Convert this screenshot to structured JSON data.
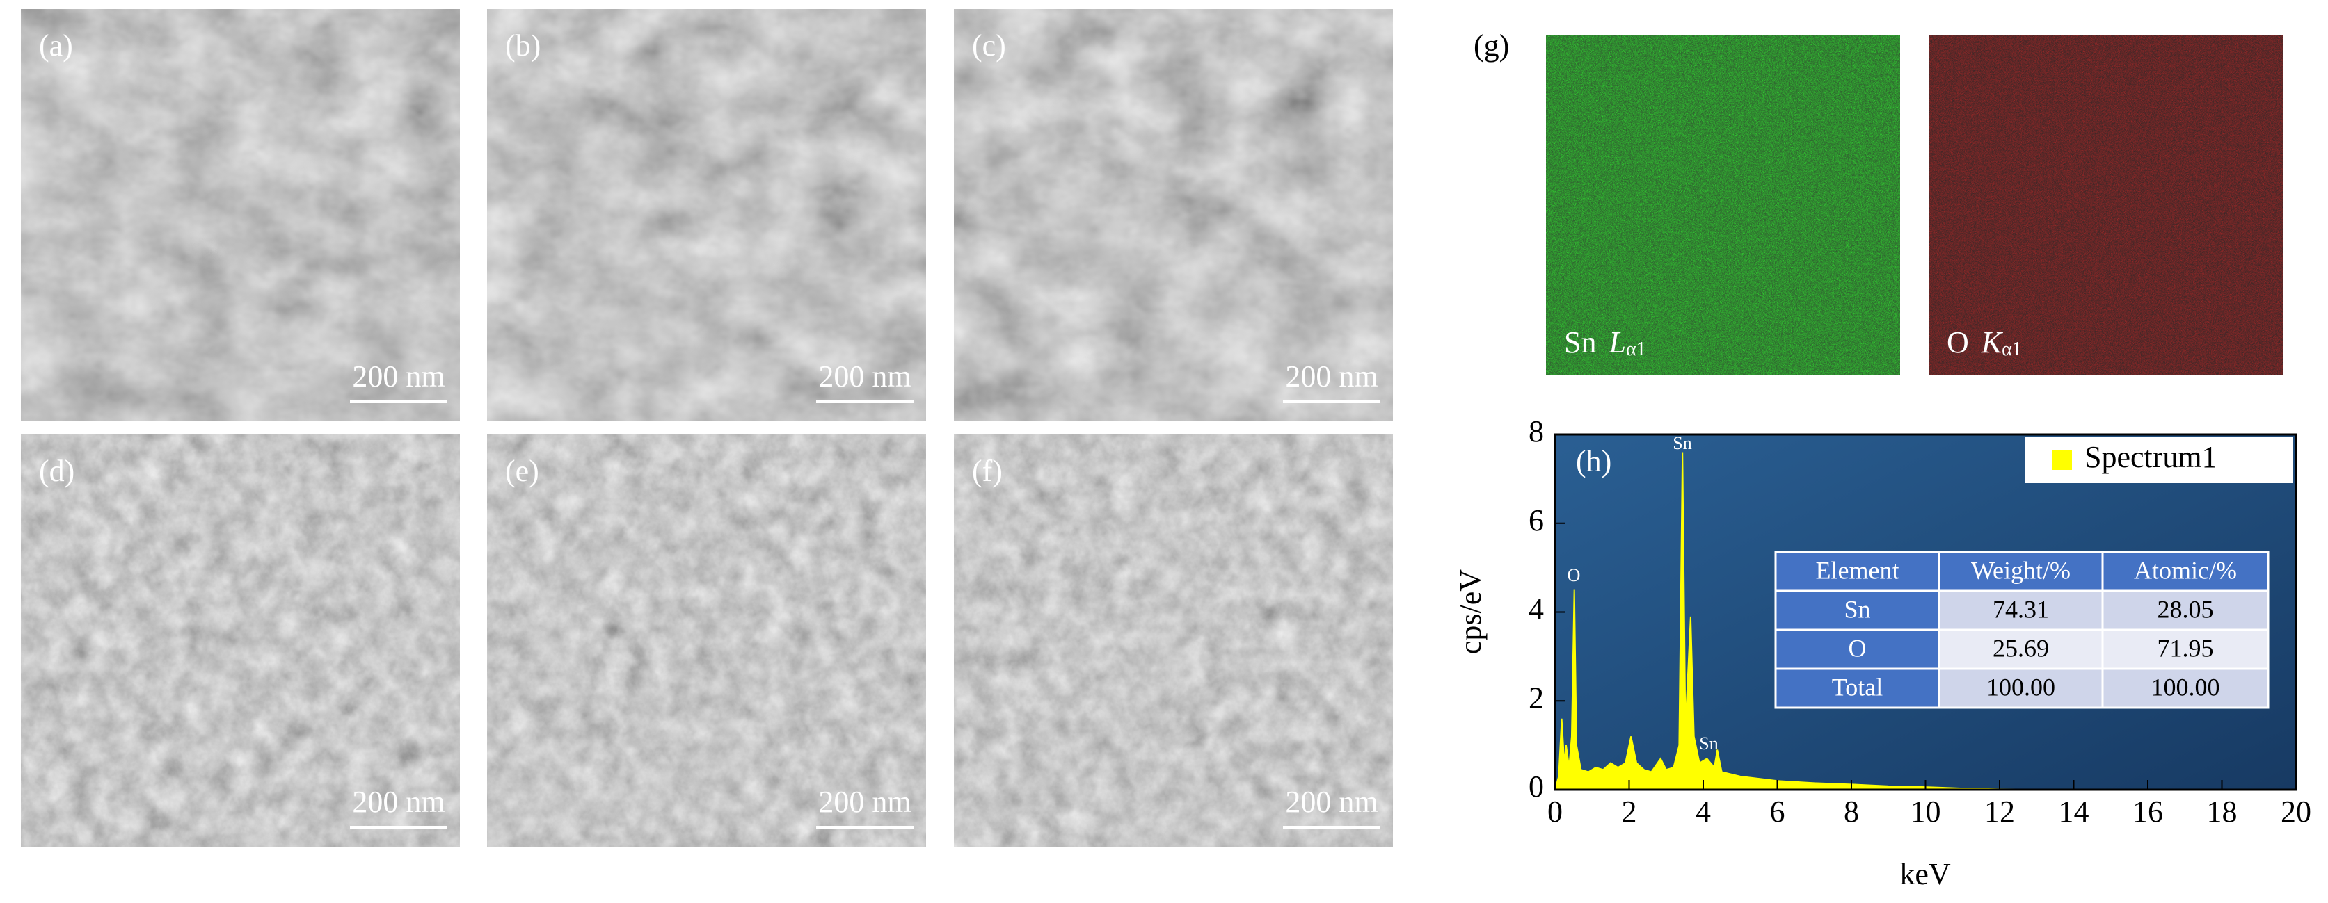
{
  "panels": [
    {
      "label": "(a)",
      "scale_bar": "200 nm"
    },
    {
      "label": "(b)",
      "scale_bar": "200 nm"
    },
    {
      "label": "(c)",
      "scale_bar": "200 nm"
    },
    {
      "label": "(d)",
      "scale_bar": "200 nm"
    },
    {
      "label": "(e)",
      "scale_bar": "200 nm"
    },
    {
      "label": "(f)",
      "scale_bar": "200 nm"
    }
  ],
  "maps": {
    "label": "(g)",
    "items": [
      {
        "element": "Sn",
        "line": "L",
        "sub": "α1"
      },
      {
        "element": "O",
        "line": "K",
        "sub": "α1"
      }
    ]
  },
  "chart_data": {
    "type": "area",
    "panel_label": "(h)",
    "x_label": "keV",
    "y_label": "cps/eV",
    "annotations": [
      "Sn",
      "O",
      "Sn"
    ],
    "x": [
      0,
      0.1,
      0.18,
      0.25,
      0.3,
      0.38,
      0.45,
      0.52,
      0.58,
      0.7,
      0.9,
      1.1,
      1.3,
      1.5,
      1.7,
      1.9,
      2.05,
      2.2,
      2.4,
      2.6,
      2.85,
      3.0,
      3.2,
      3.35,
      3.44,
      3.52,
      3.66,
      3.75,
      3.9,
      4.1,
      4.3,
      4.38,
      4.5,
      5,
      6,
      7,
      8,
      9,
      10,
      11,
      12,
      14,
      20
    ],
    "series": [
      {
        "name": "Spectrum1",
        "color": "#ffff00",
        "values": [
          0,
          0.3,
          1.6,
          0.6,
          1.0,
          0.5,
          1.2,
          4.5,
          1.0,
          0.45,
          0.4,
          0.5,
          0.45,
          0.6,
          0.5,
          0.6,
          1.2,
          0.6,
          0.45,
          0.4,
          0.7,
          0.45,
          0.5,
          1.0,
          7.6,
          1.4,
          3.9,
          1.2,
          0.6,
          0.7,
          0.5,
          0.9,
          0.4,
          0.3,
          0.2,
          0.15,
          0.12,
          0.08,
          0.06,
          0.03,
          0.01,
          0,
          0
        ]
      }
    ],
    "xlim": [
      0,
      20
    ],
    "xticks": [
      0,
      2,
      4,
      6,
      8,
      10,
      12,
      14,
      16,
      18,
      20
    ],
    "ylim": [
      0,
      8
    ],
    "yticks": [
      0,
      2,
      4,
      6,
      8
    ],
    "legend": "upper right",
    "table": {
      "header": [
        "Element",
        "Weight/%",
        "Atomic/%"
      ],
      "rows": [
        [
          "Sn",
          "74.31",
          "28.05"
        ],
        [
          "O",
          "25.69",
          "71.95"
        ],
        [
          "Total",
          "100.00",
          "100.00"
        ]
      ]
    }
  }
}
